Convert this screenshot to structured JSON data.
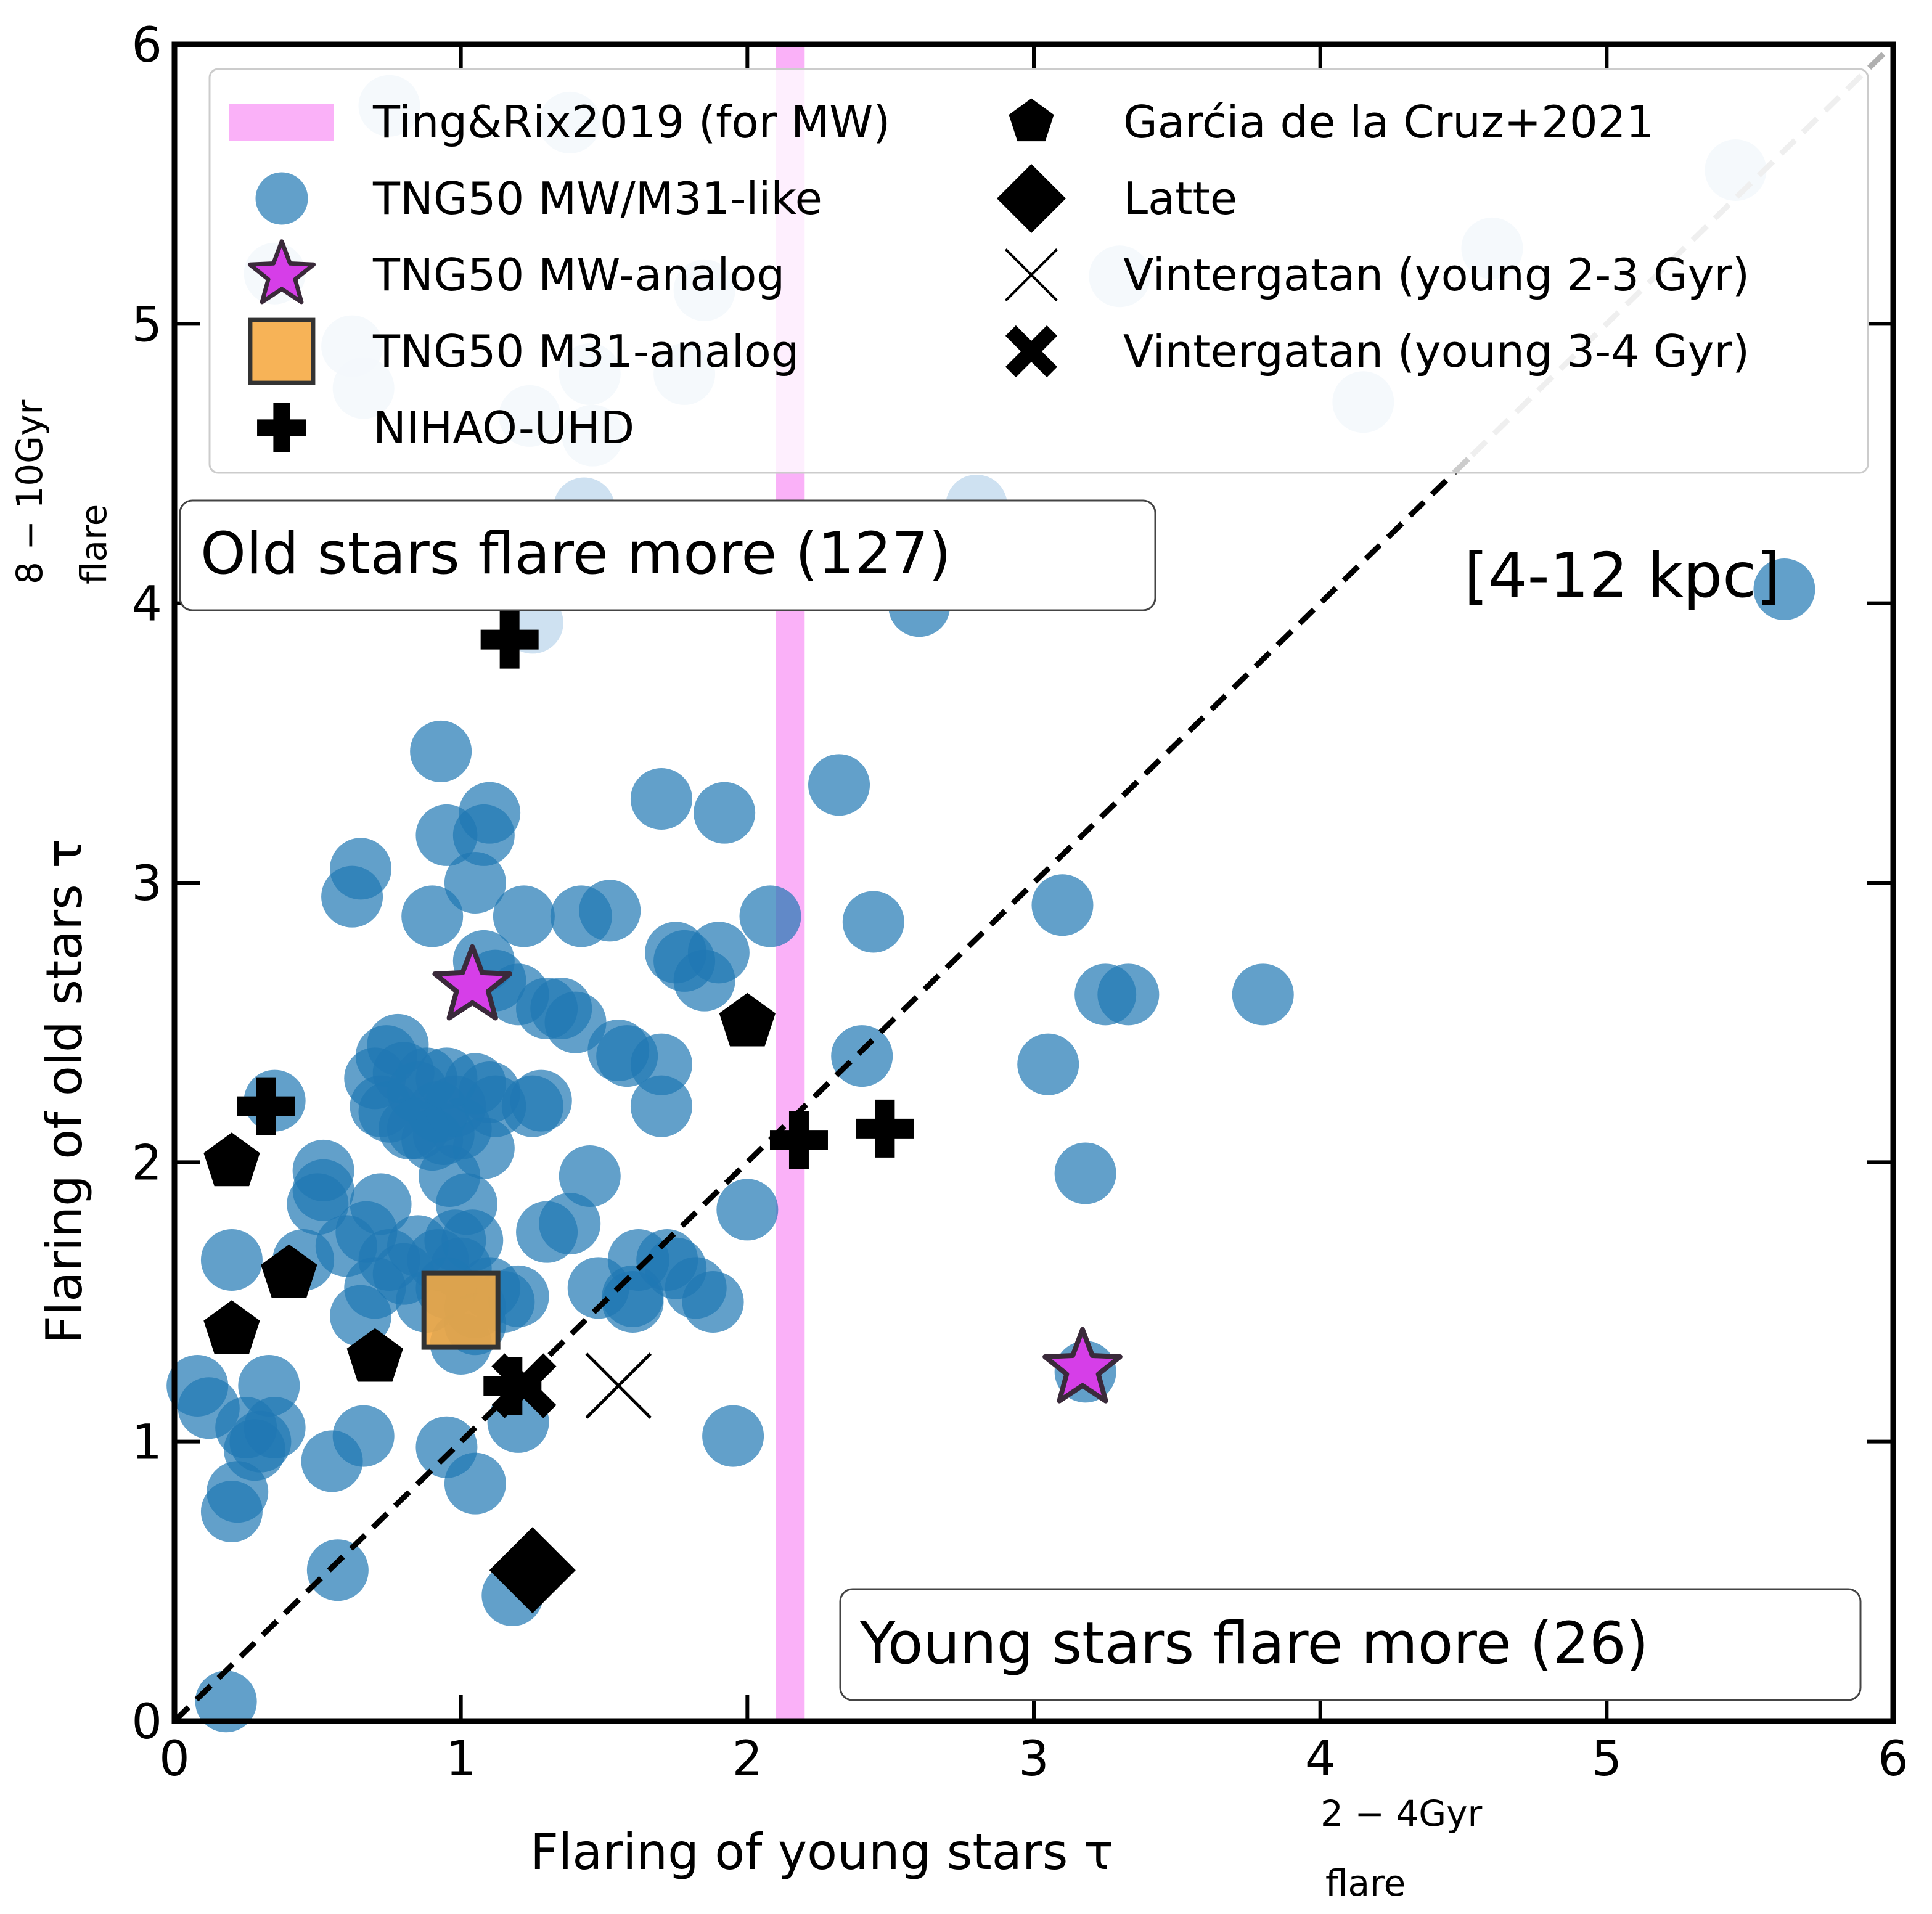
{
  "chart_data": {
    "type": "scatter",
    "xlabel": "Flaring of young stars τ",
    "xlabel_sub": "flare",
    "xlabel_sup": "2 − 4Gyr",
    "ylabel": "Flaring of old stars τ",
    "ylabel_sub": "flare",
    "ylabel_sup": "8 − 10Gyr",
    "xlim": [
      0,
      6
    ],
    "ylim": [
      0,
      6
    ],
    "x_ticks": [
      "0",
      "1",
      "2",
      "3",
      "4",
      "5",
      "6"
    ],
    "y_ticks": [
      "0",
      "1",
      "2",
      "3",
      "4",
      "5",
      "6"
    ],
    "grid": false,
    "legend_position": "top",
    "annotations": {
      "old_region": "Old stars flare more (127)",
      "young_region": "Young stars flare more (26)",
      "radial_range": "[4-12 kpc]"
    },
    "band": {
      "label": "Ting&Rix2019 (for MW)",
      "xmin": 2.1,
      "xmax": 2.2,
      "color": "#f9a8f7"
    },
    "identity_line": {
      "from": [
        0,
        0
      ],
      "to": [
        6,
        6
      ]
    },
    "series": [
      {
        "name": "TNG50 MW/M31-like",
        "marker": "circle",
        "color": "#1f77b4",
        "points": [
          [
            0.18,
            0.07
          ],
          [
            0.2,
            0.75
          ],
          [
            0.22,
            0.82
          ],
          [
            0.25,
            1.05
          ],
          [
            0.28,
            0.97
          ],
          [
            0.3,
            1.0
          ],
          [
            0.33,
            1.2
          ],
          [
            0.35,
            1.05
          ],
          [
            0.08,
            1.2
          ],
          [
            0.12,
            1.12
          ],
          [
            0.2,
            1.65
          ],
          [
            0.35,
            2.22
          ],
          [
            0.55,
            0.93
          ],
          [
            0.57,
            0.54
          ],
          [
            0.66,
            1.02
          ],
          [
            0.45,
            1.65
          ],
          [
            0.5,
            1.85
          ],
          [
            0.52,
            1.9
          ],
          [
            0.52,
            1.97
          ],
          [
            0.6,
            1.7
          ],
          [
            0.65,
            1.45
          ],
          [
            0.67,
            1.75
          ],
          [
            0.7,
            1.55
          ],
          [
            0.72,
            1.85
          ],
          [
            0.75,
            1.65
          ],
          [
            0.7,
            2.3
          ],
          [
            0.72,
            2.2
          ],
          [
            0.74,
            2.38
          ],
          [
            0.75,
            2.18
          ],
          [
            0.78,
            2.42
          ],
          [
            0.8,
            2.32
          ],
          [
            0.82,
            2.12
          ],
          [
            0.85,
            2.25
          ],
          [
            0.88,
            2.3
          ],
          [
            0.9,
            2.08
          ],
          [
            0.92,
            2.18
          ],
          [
            0.94,
            2.1
          ],
          [
            0.96,
            1.95
          ],
          [
            0.98,
            2.2
          ],
          [
            1.0,
            2.12
          ],
          [
            1.02,
            1.85
          ],
          [
            1.04,
            1.72
          ],
          [
            1.05,
            2.28
          ],
          [
            1.08,
            2.05
          ],
          [
            1.1,
            2.25
          ],
          [
            1.12,
            2.2
          ],
          [
            0.8,
            1.6
          ],
          [
            0.85,
            1.7
          ],
          [
            0.88,
            1.5
          ],
          [
            0.92,
            1.65
          ],
          [
            0.95,
            1.55
          ],
          [
            0.98,
            1.72
          ],
          [
            1.0,
            1.62
          ],
          [
            1.05,
            1.48
          ],
          [
            1.1,
            1.55
          ],
          [
            1.15,
            1.5
          ],
          [
            1.2,
            1.52
          ],
          [
            1.0,
            1.35
          ],
          [
            1.05,
            1.42
          ],
          [
            0.95,
            0.98
          ],
          [
            1.05,
            0.85
          ],
          [
            1.2,
            1.07
          ],
          [
            1.18,
            0.45
          ],
          [
            0.62,
            2.95
          ],
          [
            0.65,
            3.05
          ],
          [
            0.9,
            2.88
          ],
          [
            0.93,
            3.47
          ],
          [
            0.95,
            3.17
          ],
          [
            1.05,
            3.0
          ],
          [
            1.08,
            3.17
          ],
          [
            1.1,
            3.25
          ],
          [
            1.08,
            2.72
          ],
          [
            1.12,
            2.65
          ],
          [
            1.2,
            2.6
          ],
          [
            1.22,
            2.88
          ],
          [
            1.3,
            2.55
          ],
          [
            1.35,
            2.55
          ],
          [
            1.4,
            2.5
          ],
          [
            1.42,
            2.88
          ],
          [
            1.52,
            2.9
          ],
          [
            1.45,
            1.95
          ],
          [
            1.38,
            1.78
          ],
          [
            1.3,
            1.75
          ],
          [
            1.25,
            2.2
          ],
          [
            1.28,
            2.22
          ],
          [
            1.48,
            1.55
          ],
          [
            1.55,
            2.4
          ],
          [
            1.58,
            2.38
          ],
          [
            1.6,
            1.52
          ],
          [
            1.62,
            1.65
          ],
          [
            1.7,
            2.35
          ],
          [
            1.7,
            2.2
          ],
          [
            1.72,
            1.65
          ],
          [
            1.75,
            2.75
          ],
          [
            1.78,
            2.72
          ],
          [
            1.82,
            1.55
          ],
          [
            1.85,
            2.65
          ],
          [
            1.88,
            1.5
          ],
          [
            1.9,
            2.75
          ],
          [
            1.92,
            3.25
          ],
          [
            1.95,
            1.02
          ],
          [
            2.0,
            1.83
          ],
          [
            2.08,
            2.88
          ],
          [
            1.7,
            3.3
          ],
          [
            2.32,
            3.35
          ],
          [
            2.4,
            2.38
          ],
          [
            2.44,
            2.86
          ],
          [
            2.6,
            3.99
          ],
          [
            3.05,
            2.35
          ],
          [
            3.1,
            2.92
          ],
          [
            3.18,
            1.96
          ],
          [
            3.25,
            2.6
          ],
          [
            3.33,
            2.6
          ],
          [
            3.8,
            2.6
          ],
          [
            5.62,
            4.05
          ],
          [
            3.18,
            1.25
          ],
          [
            1.75,
            1.62
          ],
          [
            1.6,
            1.5
          ],
          [
            0.85,
            2.12
          ],
          [
            0.95,
            2.3
          ]
        ]
      },
      {
        "name": "TNG50 MW/M31-like (faded)",
        "marker": "circle",
        "color": "#c6dcee",
        "points": [
          [
            0.75,
            5.78
          ],
          [
            1.38,
            5.72
          ],
          [
            0.35,
            5.18
          ],
          [
            0.62,
            4.92
          ],
          [
            0.66,
            4.77
          ],
          [
            1.24,
            4.67
          ],
          [
            1.45,
            4.82
          ],
          [
            1.46,
            4.6
          ],
          [
            1.78,
            4.82
          ],
          [
            1.85,
            5.12
          ],
          [
            1.43,
            4.34
          ],
          [
            1.42,
            4.2
          ],
          [
            1.25,
            3.93
          ],
          [
            2.2,
            4.12
          ],
          [
            2.8,
            4.35
          ],
          [
            3.3,
            5.17
          ],
          [
            4.15,
            4.72
          ],
          [
            4.6,
            5.27
          ],
          [
            5.45,
            5.55
          ]
        ]
      },
      {
        "name": "TNG50 MW-analog",
        "marker": "star",
        "color": "#d63ee8",
        "points": [
          [
            1.04,
            2.63
          ],
          [
            3.17,
            1.26
          ]
        ]
      },
      {
        "name": "TNG50 M31-analog",
        "marker": "square",
        "color": "#f6a840",
        "points": [
          [
            1.0,
            1.47
          ]
        ]
      },
      {
        "name": "NIHAO-UHD",
        "marker": "plus",
        "color": "#000000",
        "points": [
          [
            1.17,
            3.87
          ],
          [
            0.32,
            2.2
          ],
          [
            2.18,
            2.08
          ],
          [
            2.48,
            2.12
          ],
          [
            1.18,
            1.2
          ]
        ]
      },
      {
        "name": "Garćia de la Cruz+2021",
        "marker": "pentagon",
        "color": "#000000",
        "points": [
          [
            0.2,
            2.0
          ],
          [
            0.4,
            1.6
          ],
          [
            0.2,
            1.4
          ],
          [
            0.7,
            1.3
          ],
          [
            2.0,
            2.5
          ]
        ]
      },
      {
        "name": "Latte",
        "marker": "diamond",
        "color": "#000000",
        "points": [
          [
            1.25,
            0.54
          ]
        ]
      },
      {
        "name": "Vintergatan (young 2-3 Gyr)",
        "marker": "x",
        "color": "#000000",
        "points": [
          [
            1.55,
            1.2
          ]
        ]
      },
      {
        "name": "Vintergatan (young 3-4 Gyr)",
        "marker": "xbold",
        "color": "#000000",
        "points": [
          [
            1.22,
            1.2
          ]
        ]
      }
    ]
  }
}
